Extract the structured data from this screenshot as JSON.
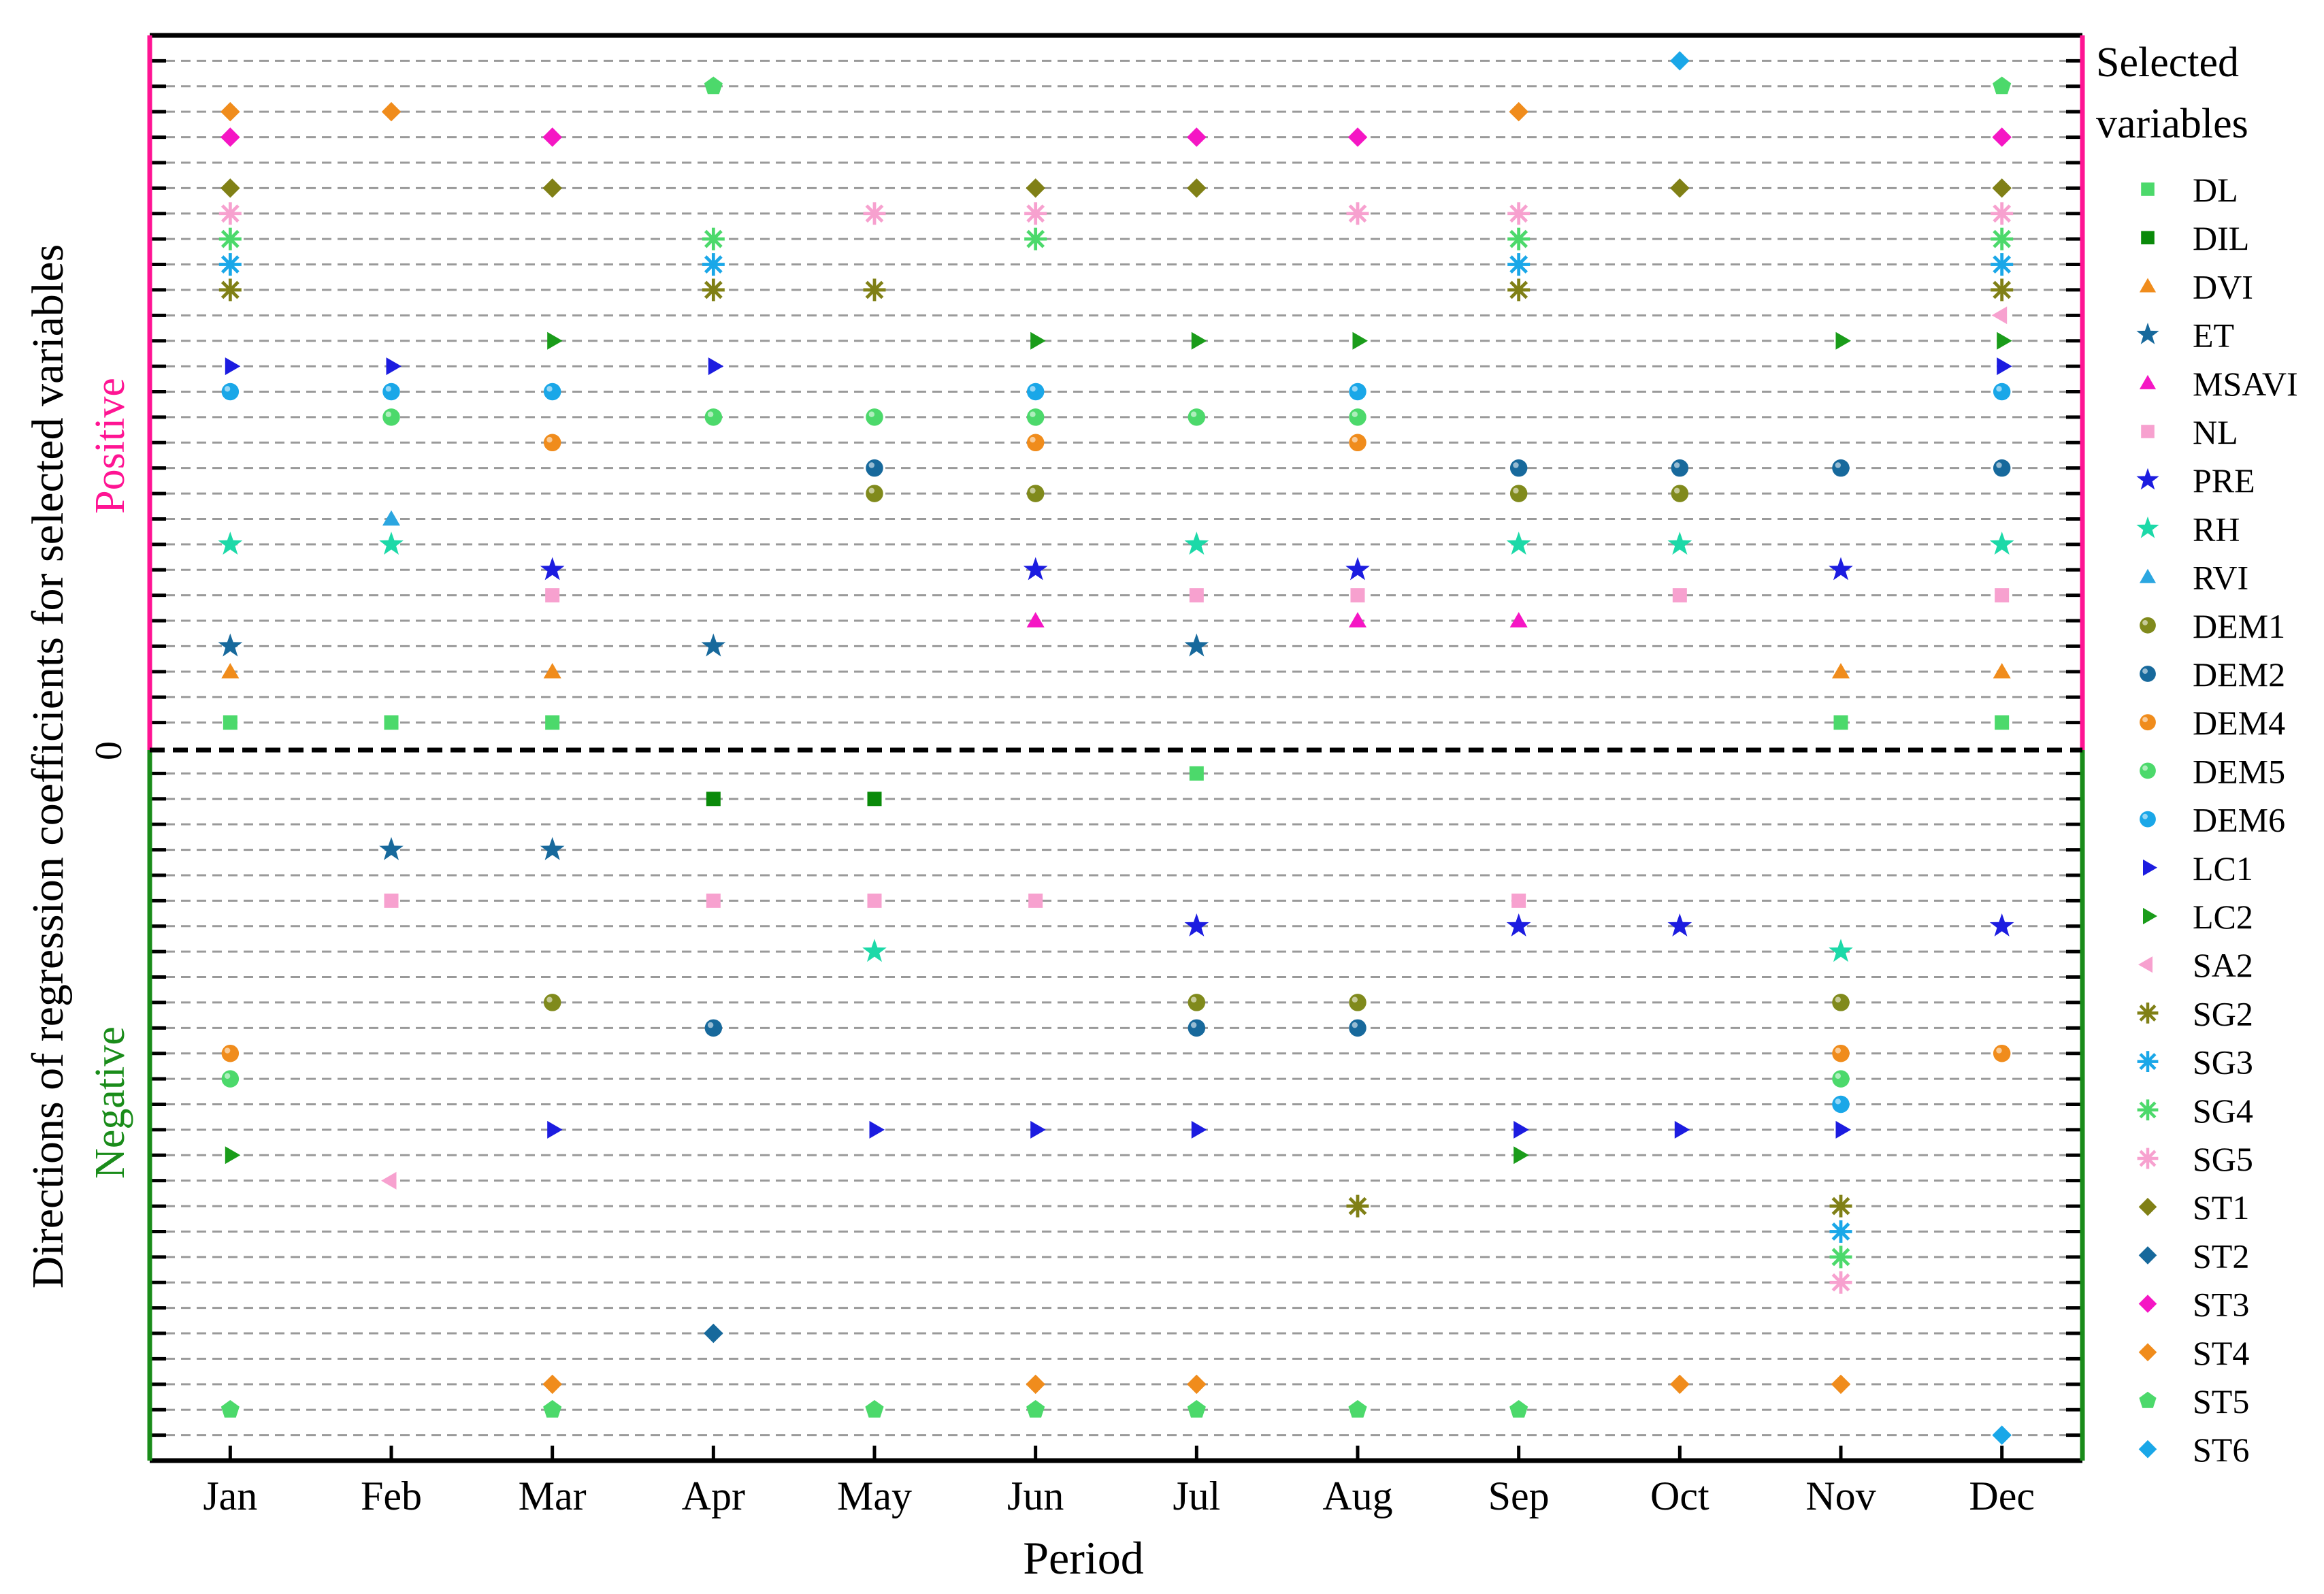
{
  "chart_data": {
    "type": "scatter",
    "title": "",
    "xlabel": "Period",
    "ylabel": "Directions of regression coefficients for selected variables",
    "positive_label": "Positive",
    "negative_label": "Negative",
    "zero_label": "0",
    "legend_title": [
      "Selected",
      "variables"
    ],
    "legend_position": "right",
    "categories": [
      "Jan",
      "Feb",
      "Mar",
      "Apr",
      "May",
      "Jun",
      "Jul",
      "Aug",
      "Sep",
      "Oct",
      "Nov",
      "Dec"
    ],
    "ylim": [
      -28,
      28
    ],
    "grid": true,
    "colors": {
      "positive_border": "#ff1493",
      "negative_border": "#1a8c1a",
      "zero_line": "#000000",
      "grid": "#9a9a9a"
    },
    "series": [
      {
        "name": "DL",
        "marker": "square",
        "color": "#4cd96b",
        "rank": 1,
        "months": [
          "Jan",
          "Feb",
          "Mar",
          "Nov",
          "Dec"
        ],
        "neg_months": [
          "Jul"
        ]
      },
      {
        "name": "DIL",
        "marker": "square",
        "color": "#0a8a0a",
        "rank": 2,
        "months": [],
        "neg_months": [
          "Apr",
          "May"
        ]
      },
      {
        "name": "DVI",
        "marker": "triangle-up",
        "color": "#f08c1c",
        "rank": 3,
        "months": [
          "Jan",
          "Mar",
          "Nov",
          "Dec"
        ],
        "neg_months": []
      },
      {
        "name": "ET",
        "marker": "star",
        "color": "#17699c",
        "rank": 4,
        "months": [
          "Jan",
          "Apr",
          "Jul"
        ],
        "neg_months": [
          "Feb",
          "Mar"
        ]
      },
      {
        "name": "MSAVI",
        "marker": "triangle-up",
        "color": "#f516c4",
        "rank": 5,
        "months": [
          "Jun",
          "Aug",
          "Sep"
        ],
        "neg_months": []
      },
      {
        "name": "NL",
        "marker": "square",
        "color": "#f7a1cf",
        "rank": 6,
        "months": [
          "Mar",
          "Jul",
          "Aug",
          "Oct",
          "Dec"
        ],
        "neg_months": [
          "Feb",
          "Apr",
          "May",
          "Jun",
          "Sep"
        ]
      },
      {
        "name": "PRE",
        "marker": "star",
        "color": "#1c1ce0",
        "rank": 7,
        "months": [
          "Mar",
          "Jun",
          "Aug",
          "Nov"
        ],
        "neg_months": [
          "Jul",
          "Sep",
          "Oct",
          "Dec"
        ]
      },
      {
        "name": "RH",
        "marker": "star",
        "color": "#1cd9a8",
        "rank": 8,
        "months": [
          "Jan",
          "Feb",
          "Jul",
          "Sep",
          "Oct",
          "Dec"
        ],
        "neg_months": [
          "May",
          "Nov"
        ]
      },
      {
        "name": "RVI",
        "marker": "triangle-up",
        "color": "#2ba6e0",
        "rank": 9,
        "months": [
          "Feb"
        ],
        "neg_months": []
      },
      {
        "name": "DEM1",
        "marker": "sphere",
        "color": "#808a1c",
        "rank": 10,
        "months": [
          "May",
          "Jun",
          "Sep",
          "Oct"
        ],
        "neg_months": [
          "Mar",
          "Jul",
          "Aug",
          "Nov"
        ]
      },
      {
        "name": "DEM2",
        "marker": "sphere",
        "color": "#17699c",
        "rank": 11,
        "months": [
          "May",
          "Sep",
          "Oct",
          "Nov",
          "Dec"
        ],
        "neg_months": [
          "Apr",
          "Jul",
          "Aug"
        ]
      },
      {
        "name": "DEM4",
        "marker": "sphere",
        "color": "#f08c1c",
        "rank": 12,
        "months": [
          "Mar",
          "Jun",
          "Aug"
        ],
        "neg_months": [
          "Jan",
          "Nov",
          "Dec"
        ]
      },
      {
        "name": "DEM5",
        "marker": "sphere",
        "color": "#4cd96b",
        "rank": 13,
        "months": [
          "Feb",
          "Apr",
          "May",
          "Jun",
          "Jul",
          "Aug"
        ],
        "neg_months": [
          "Jan",
          "Nov"
        ]
      },
      {
        "name": "DEM6",
        "marker": "sphere",
        "color": "#1aa7e8",
        "rank": 14,
        "months": [
          "Jan",
          "Feb",
          "Mar",
          "Jun",
          "Aug",
          "Dec"
        ],
        "neg_months": [
          "Nov"
        ]
      },
      {
        "name": "LC1",
        "marker": "triangle-right",
        "color": "#1c1ce0",
        "rank": 15,
        "months": [
          "Jan",
          "Feb",
          "Apr",
          "Dec"
        ],
        "neg_months": [
          "Mar",
          "May",
          "Jun",
          "Jul",
          "Sep",
          "Oct",
          "Nov"
        ]
      },
      {
        "name": "LC2",
        "marker": "triangle-right",
        "color": "#1a9c1a",
        "rank": 16,
        "months": [
          "Mar",
          "Jun",
          "Jul",
          "Aug",
          "Nov",
          "Dec"
        ],
        "neg_months": [
          "Jan",
          "Sep"
        ]
      },
      {
        "name": "SA2",
        "marker": "triangle-left",
        "color": "#f7a1cf",
        "rank": 17,
        "months": [
          "Dec"
        ],
        "neg_months": [
          "Feb"
        ]
      },
      {
        "name": "SG2",
        "marker": "asterisk",
        "color": "#808016",
        "rank": 18,
        "months": [
          "Jan",
          "Apr",
          "May",
          "Sep",
          "Dec"
        ],
        "neg_months": [
          "Aug",
          "Nov"
        ]
      },
      {
        "name": "SG3",
        "marker": "asterisk",
        "color": "#1aa7e8",
        "rank": 19,
        "months": [
          "Jan",
          "Apr",
          "Sep",
          "Dec"
        ],
        "neg_months": [
          "Nov"
        ]
      },
      {
        "name": "SG4",
        "marker": "asterisk",
        "color": "#4cd96b",
        "rank": 20,
        "months": [
          "Jan",
          "Apr",
          "Jun",
          "Sep",
          "Dec"
        ],
        "neg_months": [
          "Nov"
        ]
      },
      {
        "name": "SG5",
        "marker": "asterisk",
        "color": "#f7a1cf",
        "rank": 21,
        "months": [
          "Jan",
          "May",
          "Jun",
          "Aug",
          "Sep",
          "Dec"
        ],
        "neg_months": [
          "Nov"
        ]
      },
      {
        "name": "ST1",
        "marker": "diamond",
        "color": "#808016",
        "rank": 22,
        "months": [
          "Jan",
          "Mar",
          "Jun",
          "Jul",
          "Oct",
          "Dec"
        ],
        "neg_months": []
      },
      {
        "name": "ST2",
        "marker": "diamond",
        "color": "#17699c",
        "rank": 23,
        "months": [],
        "neg_months": [
          "Apr"
        ]
      },
      {
        "name": "ST3",
        "marker": "diamond",
        "color": "#f516c4",
        "rank": 24,
        "months": [
          "Jan",
          "Mar",
          "Jul",
          "Aug",
          "Dec"
        ],
        "neg_months": []
      },
      {
        "name": "ST4",
        "marker": "diamond",
        "color": "#f08c1c",
        "rank": 25,
        "months": [
          "Jan",
          "Feb",
          "Sep"
        ],
        "neg_months": [
          "Mar",
          "Jun",
          "Jul",
          "Oct",
          "Nov"
        ]
      },
      {
        "name": "ST5",
        "marker": "pentagon",
        "color": "#4cd96b",
        "rank": 26,
        "months": [
          "Apr",
          "Dec"
        ],
        "neg_months": [
          "Jan",
          "Mar",
          "May",
          "Jun",
          "Jul",
          "Aug",
          "Sep"
        ]
      },
      {
        "name": "ST6",
        "marker": "diamond",
        "color": "#1aa7e8",
        "rank": 27,
        "months": [
          "Oct"
        ],
        "neg_months": [
          "Dec"
        ]
      }
    ]
  }
}
